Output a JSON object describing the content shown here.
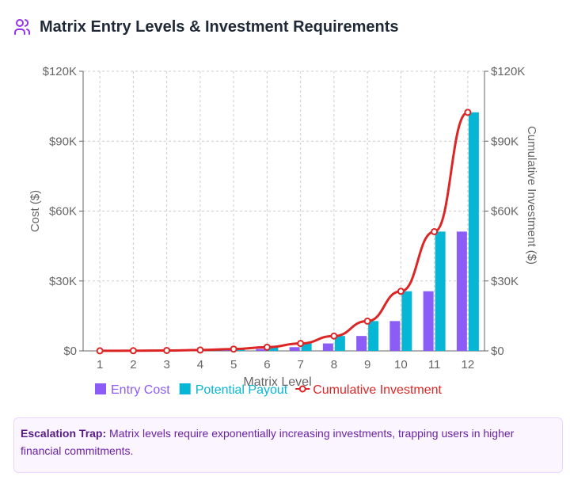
{
  "header": {
    "title": "Matrix Entry Levels & Investment Requirements",
    "icon": "users-icon"
  },
  "chart_data": {
    "type": "bar",
    "xlabel": "Matrix Level",
    "ylabel": "Cost ($)",
    "y2label": "Cumulative Investment ($)",
    "categories": [
      "1",
      "2",
      "3",
      "4",
      "5",
      "6",
      "7",
      "8",
      "9",
      "10",
      "11",
      "12"
    ],
    "ylim": [
      0,
      120000
    ],
    "y2lim": [
      0,
      120000
    ],
    "yticks": [
      "$0",
      "$30K",
      "$60K",
      "$90K",
      "$120K"
    ],
    "grid": true,
    "legend_position": "bottom",
    "series": [
      {
        "name": "Entry Cost",
        "type": "bar",
        "color": "#8b5cf6",
        "values": [
          25,
          50,
          100,
          200,
          400,
          800,
          1600,
          3200,
          6400,
          12800,
          25600,
          51200
        ]
      },
      {
        "name": "Potential Payout",
        "type": "bar",
        "color": "#06b6d4",
        "values": [
          50,
          100,
          200,
          400,
          800,
          1600,
          3200,
          6400,
          12800,
          25600,
          51200,
          102400
        ]
      },
      {
        "name": "Cumulative Investment",
        "type": "line",
        "color": "#dc2626",
        "values": [
          25,
          75,
          175,
          375,
          775,
          1575,
          3175,
          6375,
          12775,
          25575,
          51175,
          102375
        ]
      }
    ]
  },
  "note": {
    "label": "Escalation Trap:",
    "text": " Matrix levels require exponentially increasing investments, trapping users in higher financial commitments."
  }
}
